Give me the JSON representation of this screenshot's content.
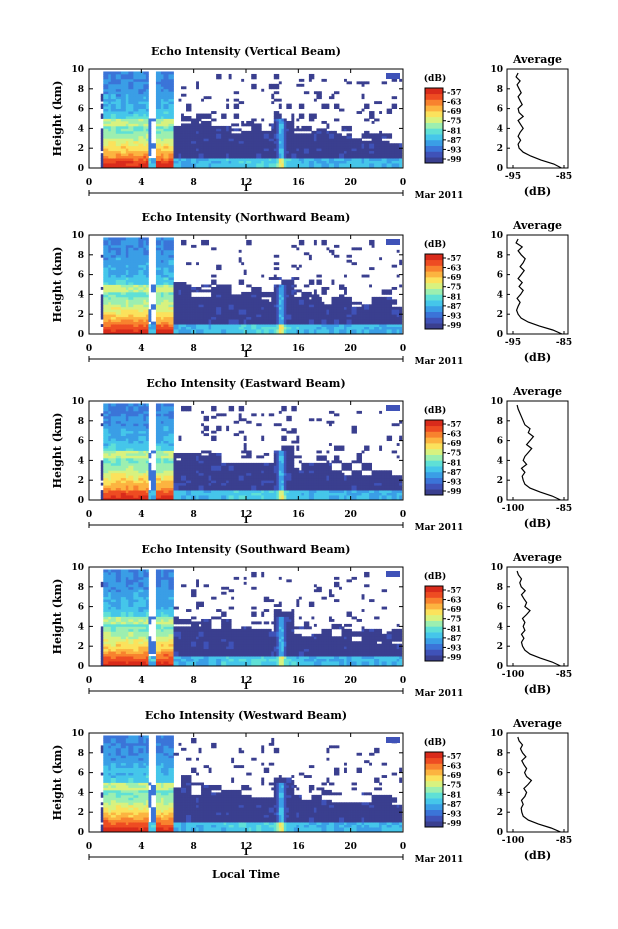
{
  "chart_data": {
    "type": "heatmap",
    "xlabel": "Local Time",
    "x_ticks": [
      "0",
      "4",
      "8",
      "12",
      "16",
      "20",
      "0"
    ],
    "date_marker": "1",
    "date_label": "Mar 2011",
    "ylabel": "Height (km)",
    "ylim": [
      0,
      10
    ],
    "y_ticks": [
      "0",
      "2",
      "4",
      "6",
      "8",
      "10"
    ],
    "colorbar": {
      "title": "(dB)",
      "ticks": [
        "-57",
        "-63",
        "-69",
        "-75",
        "-81",
        "-87",
        "-93",
        "-99"
      ],
      "colors": [
        "#3a3f8f",
        "#3f52b8",
        "#3b74d8",
        "#3a9ee6",
        "#45c6ea",
        "#5fe0d6",
        "#9cefb0",
        "#d8f27f",
        "#fbe25c",
        "#fcb440",
        "#f8822e",
        "#ee4c22",
        "#d92b1b"
      ]
    },
    "profile_title": "Average",
    "profile_xlabel": "(dB)",
    "panels": [
      {
        "title": "Echo Intensity (Vertical Beam)",
        "profile_xticks": [
          "-95",
          "-85"
        ],
        "profile_xlim": [
          -95,
          -85
        ],
        "avg_profile": {
          "height": [
            0,
            0.4,
            0.8,
            1.2,
            1.6,
            2,
            2.4,
            2.8,
            3.2,
            3.6,
            4,
            4.4,
            4.8,
            5.2,
            5.6,
            6,
            6.4,
            6.8,
            7.2,
            7.6,
            8,
            8.4,
            8.8,
            9.2,
            9.6
          ],
          "value": [
            -85.5,
            -87,
            -89.5,
            -91.5,
            -93,
            -93.8,
            -94,
            -93.5,
            -94,
            -93.6,
            -93,
            -93.5,
            -94,
            -93,
            -93.8,
            -94,
            -93.2,
            -93.6,
            -94,
            -93.4,
            -93.8,
            -94.2,
            -93.6,
            -94.4,
            -94
          ]
        }
      },
      {
        "title": "Echo Intensity (Northward Beam)",
        "profile_xticks": [
          "-95",
          "-85"
        ],
        "profile_xlim": [
          -95,
          -85
        ],
        "avg_profile": {
          "height": [
            0,
            0.4,
            0.8,
            1.2,
            1.6,
            2,
            2.4,
            2.8,
            3.2,
            3.6,
            4,
            4.4,
            4.8,
            5.2,
            5.6,
            6,
            6.4,
            6.8,
            7.2,
            7.6,
            8,
            8.4,
            8.8,
            9.2,
            9.6
          ],
          "value": [
            -85.4,
            -87.2,
            -89.8,
            -92,
            -93.4,
            -94,
            -94.3,
            -94,
            -93.6,
            -94.2,
            -93.5,
            -93,
            -93.8,
            -93.2,
            -94,
            -93.4,
            -92.8,
            -93.6,
            -93,
            -92.6,
            -93.4,
            -94,
            -93.2,
            -94.4,
            -94
          ]
        }
      },
      {
        "title": "Echo Intensity (Eastward Beam)",
        "profile_xticks": [
          "-100",
          "-85"
        ],
        "profile_xlim": [
          -100,
          -85
        ],
        "avg_profile": {
          "height": [
            0,
            0.4,
            0.8,
            1.2,
            1.6,
            2,
            2.4,
            2.8,
            3.2,
            3.6,
            4,
            4.4,
            4.8,
            5.2,
            5.6,
            6,
            6.4,
            6.8,
            7.2,
            7.6,
            8,
            8.4,
            8.8,
            9.2,
            9.6
          ],
          "value": [
            -86,
            -88.5,
            -92,
            -95,
            -96.5,
            -97,
            -97.3,
            -96.5,
            -97.5,
            -96,
            -97,
            -96.5,
            -95.5,
            -94.5,
            -96,
            -95,
            -94,
            -95.5,
            -95,
            -96.5,
            -97,
            -97.5,
            -98,
            -98.5,
            -98.8
          ]
        }
      },
      {
        "title": "Echo Intensity (Southward Beam)",
        "profile_xticks": [
          "-100",
          "-85"
        ],
        "profile_xlim": [
          -100,
          -85
        ],
        "avg_profile": {
          "height": [
            0,
            0.4,
            0.8,
            1.2,
            1.6,
            2,
            2.4,
            2.8,
            3.2,
            3.6,
            4,
            4.4,
            4.8,
            5.2,
            5.6,
            6,
            6.4,
            6.8,
            7.2,
            7.6,
            8,
            8.4,
            8.8,
            9.2,
            9.6
          ],
          "value": [
            -86,
            -88.5,
            -92,
            -95,
            -96.5,
            -97.2,
            -97.5,
            -96.8,
            -97.5,
            -96.5,
            -97,
            -96.5,
            -97.2,
            -96,
            -95,
            -96.5,
            -96,
            -96.8,
            -97.5,
            -96.4,
            -97.6,
            -98,
            -97.5,
            -98.4,
            -98.8
          ]
        }
      },
      {
        "title": "Echo Intensity (Westward Beam)",
        "profile_xticks": [
          "-100",
          "-85"
        ],
        "profile_xlim": [
          -100,
          -85
        ],
        "avg_profile": {
          "height": [
            0,
            0.4,
            0.8,
            1.2,
            1.6,
            2,
            2.4,
            2.8,
            3.2,
            3.6,
            4,
            4.4,
            4.8,
            5.2,
            5.6,
            6,
            6.4,
            6.8,
            7.2,
            7.6,
            8,
            8.4,
            8.8,
            9.2,
            9.6
          ],
          "value": [
            -86,
            -88.8,
            -92.5,
            -95.5,
            -97,
            -97.4,
            -97.6,
            -97,
            -97.5,
            -96.5,
            -96,
            -96.8,
            -95.6,
            -94.6,
            -96,
            -96.6,
            -96,
            -96.8,
            -97.4,
            -96.2,
            -97.2,
            -97.8,
            -97.2,
            -98.2,
            -98.6
          ]
        }
      }
    ]
  }
}
